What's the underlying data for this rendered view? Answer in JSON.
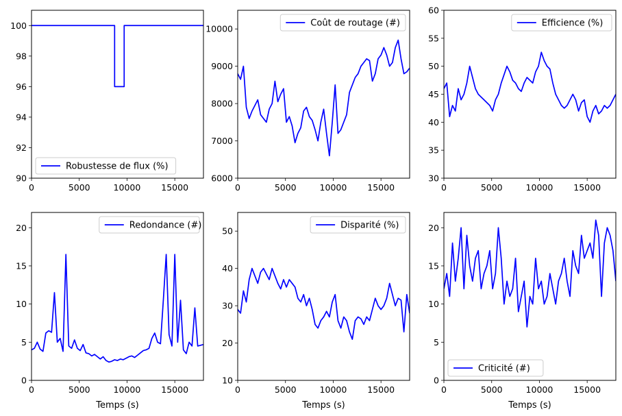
{
  "figure": {
    "line_color": "#0000ff"
  },
  "chart_data": [
    {
      "type": "line",
      "xlim": [
        0,
        18000
      ],
      "ylim": [
        90,
        101
      ],
      "xticks": [
        0,
        5000,
        10000,
        15000
      ],
      "yticks": [
        90,
        92,
        94,
        96,
        98,
        100
      ],
      "xlabel": "",
      "grid": false,
      "legend_loc": "bottom-left",
      "series": [
        {
          "name": "Robustesse de flux (%)",
          "color": "#0000ff",
          "x": [
            0,
            8700,
            8700,
            9700,
            9700,
            18000
          ],
          "y": [
            100,
            100,
            96,
            96,
            100,
            100
          ]
        }
      ]
    },
    {
      "type": "line",
      "xlim": [
        0,
        18000
      ],
      "ylim": [
        6000,
        10500
      ],
      "xticks": [
        0,
        5000,
        10000,
        15000
      ],
      "yticks": [
        6000,
        7000,
        8000,
        9000,
        10000
      ],
      "xlabel": "",
      "grid": false,
      "legend_loc": "top-right",
      "series": [
        {
          "name": "Coût de routage (#)",
          "color": "#0000ff",
          "x": [
            0,
            300,
            600,
            900,
            1200,
            1500,
            1800,
            2100,
            2400,
            2700,
            3000,
            3300,
            3600,
            3900,
            4200,
            4500,
            4800,
            5100,
            5400,
            5700,
            6000,
            6300,
            6600,
            6900,
            7200,
            7500,
            7800,
            8100,
            8400,
            8700,
            9000,
            9300,
            9600,
            9900,
            10200,
            10500,
            10800,
            11100,
            11400,
            11700,
            12000,
            12300,
            12600,
            12900,
            13200,
            13500,
            13800,
            14100,
            14400,
            14700,
            15000,
            15300,
            15600,
            15900,
            16200,
            16500,
            16800,
            17100,
            17400,
            17700,
            18000
          ],
          "y": [
            8800,
            8650,
            9000,
            7900,
            7600,
            7800,
            7950,
            8100,
            7700,
            7600,
            7500,
            7850,
            8000,
            8600,
            8050,
            8250,
            8400,
            7500,
            7650,
            7400,
            6950,
            7200,
            7350,
            7800,
            7900,
            7650,
            7550,
            7300,
            7000,
            7500,
            7850,
            7200,
            6600,
            7500,
            8500,
            7200,
            7300,
            7500,
            7700,
            8300,
            8500,
            8700,
            8800,
            9000,
            9100,
            9200,
            9150,
            8600,
            8800,
            9200,
            9300,
            9500,
            9300,
            9000,
            9100,
            9500,
            9700,
            9200,
            8800,
            8850,
            8950
          ]
        }
      ]
    },
    {
      "type": "line",
      "xlim": [
        0,
        18000
      ],
      "ylim": [
        30,
        60
      ],
      "xticks": [
        0,
        5000,
        10000,
        15000
      ],
      "yticks": [
        30,
        35,
        40,
        45,
        50,
        55,
        60
      ],
      "xlabel": "",
      "grid": false,
      "legend_loc": "top-right",
      "series": [
        {
          "name": "Efficience (%)",
          "color": "#0000ff",
          "x": [
            0,
            300,
            600,
            900,
            1200,
            1500,
            1800,
            2100,
            2400,
            2700,
            3000,
            3300,
            3600,
            3900,
            4200,
            4500,
            4800,
            5100,
            5400,
            5700,
            6000,
            6300,
            6600,
            6900,
            7200,
            7500,
            7800,
            8100,
            8400,
            8700,
            9000,
            9300,
            9600,
            9900,
            10200,
            10500,
            10800,
            11100,
            11400,
            11700,
            12000,
            12300,
            12600,
            12900,
            13200,
            13500,
            13800,
            14100,
            14400,
            14700,
            15000,
            15300,
            15600,
            15900,
            16200,
            16500,
            16800,
            17100,
            17400,
            17700,
            18000
          ],
          "y": [
            46,
            47,
            41,
            43,
            42,
            46,
            44,
            45,
            47,
            50,
            48,
            46,
            45,
            44.5,
            44,
            43.5,
            43,
            42,
            44,
            45,
            47,
            48.5,
            50,
            49,
            47.5,
            47,
            46,
            45.5,
            47,
            48,
            47.5,
            47,
            49,
            50,
            52.5,
            51,
            50,
            49.5,
            47,
            45,
            44,
            43,
            42.5,
            43,
            44,
            45,
            44,
            42,
            43.5,
            44,
            41,
            40,
            42,
            43,
            41.5,
            42,
            43,
            42.5,
            43,
            44,
            45
          ]
        }
      ]
    },
    {
      "type": "line",
      "xlim": [
        0,
        18000
      ],
      "ylim": [
        0,
        22
      ],
      "xticks": [
        0,
        5000,
        10000,
        15000
      ],
      "yticks": [
        0,
        5,
        10,
        15,
        20
      ],
      "xlabel": "Temps (s)",
      "grid": false,
      "legend_loc": "top-right",
      "series": [
        {
          "name": "Redondance (#)",
          "color": "#0000ff",
          "x": [
            0,
            300,
            600,
            900,
            1200,
            1500,
            1800,
            2100,
            2400,
            2700,
            3000,
            3300,
            3600,
            3900,
            4200,
            4500,
            4800,
            5100,
            5400,
            5700,
            6000,
            6300,
            6600,
            6900,
            7200,
            7500,
            7800,
            8100,
            8400,
            8700,
            9000,
            9300,
            9600,
            9900,
            10200,
            10500,
            10800,
            11100,
            11400,
            11700,
            12000,
            12300,
            12600,
            12900,
            13200,
            13500,
            13800,
            14100,
            14400,
            14700,
            15000,
            15300,
            15600,
            15900,
            16200,
            16500,
            16800,
            17100,
            17400,
            17700,
            18000
          ],
          "y": [
            4,
            4.2,
            5,
            4.1,
            3.8,
            6.2,
            6.5,
            6.3,
            11.5,
            5,
            5.5,
            3.8,
            16.5,
            4.5,
            4.2,
            5.3,
            4.2,
            3.9,
            4.7,
            3.6,
            3.5,
            3.2,
            3.4,
            3.1,
            2.8,
            3.1,
            2.6,
            2.4,
            2.5,
            2.7,
            2.6,
            2.8,
            2.7,
            2.9,
            3.1,
            3.2,
            3.0,
            3.3,
            3.6,
            3.9,
            4.0,
            4.2,
            5.5,
            6.2,
            5.0,
            4.8,
            10.5,
            16.5,
            6,
            4.5,
            16.5,
            5,
            10.5,
            4,
            3.5,
            5,
            4.5,
            9.5,
            4.5,
            4.6,
            4.7
          ]
        }
      ]
    },
    {
      "type": "line",
      "xlim": [
        0,
        18000
      ],
      "ylim": [
        10,
        55
      ],
      "xticks": [
        0,
        5000,
        10000,
        15000
      ],
      "yticks": [
        10,
        20,
        30,
        40,
        50
      ],
      "xlabel": "Temps (s)",
      "grid": false,
      "legend_loc": "top-right",
      "series": [
        {
          "name": "Disparité (%)",
          "color": "#0000ff",
          "x": [
            0,
            300,
            600,
            900,
            1200,
            1500,
            1800,
            2100,
            2400,
            2700,
            3000,
            3300,
            3600,
            3900,
            4200,
            4500,
            4800,
            5100,
            5400,
            5700,
            6000,
            6300,
            6600,
            6900,
            7200,
            7500,
            7800,
            8100,
            8400,
            8700,
            9000,
            9300,
            9600,
            9900,
            10200,
            10500,
            10800,
            11100,
            11400,
            11700,
            12000,
            12300,
            12600,
            12900,
            13200,
            13500,
            13800,
            14100,
            14400,
            14700,
            15000,
            15300,
            15600,
            15900,
            16200,
            16500,
            16800,
            17100,
            17400,
            17700,
            18000
          ],
          "y": [
            29,
            28,
            34,
            31,
            37,
            40,
            38,
            36,
            39,
            40,
            38.5,
            37,
            40,
            38,
            36,
            34.5,
            37,
            35,
            37,
            36,
            35,
            32,
            31,
            33,
            30,
            32,
            29,
            25,
            24,
            26,
            27,
            28.5,
            27,
            31,
            33,
            26,
            24,
            27,
            26,
            23,
            21,
            26,
            27,
            26.5,
            25,
            27,
            26,
            29,
            32,
            30,
            29,
            30,
            32,
            36,
            33,
            30,
            32,
            31.5,
            23,
            33,
            28
          ]
        }
      ]
    },
    {
      "type": "line",
      "xlim": [
        0,
        18000
      ],
      "ylim": [
        0,
        22
      ],
      "xticks": [
        0,
        5000,
        10000,
        15000
      ],
      "yticks": [
        0,
        5,
        10,
        15,
        20
      ],
      "xlabel": "Temps (s)",
      "grid": false,
      "legend_loc": "bottom-left",
      "series": [
        {
          "name": "Criticité (#)",
          "color": "#0000ff",
          "x": [
            0,
            300,
            600,
            900,
            1200,
            1500,
            1800,
            2100,
            2400,
            2700,
            3000,
            3300,
            3600,
            3900,
            4200,
            4500,
            4800,
            5100,
            5400,
            5700,
            6000,
            6300,
            6600,
            6900,
            7200,
            7500,
            7800,
            8100,
            8400,
            8700,
            9000,
            9300,
            9600,
            9900,
            10200,
            10500,
            10800,
            11100,
            11400,
            11700,
            12000,
            12300,
            12600,
            12900,
            13200,
            13500,
            13800,
            14100,
            14400,
            14700,
            15000,
            15300,
            15600,
            15900,
            16200,
            16500,
            16800,
            17100,
            17400,
            17700,
            18000
          ],
          "y": [
            12,
            14,
            11,
            18,
            13,
            16,
            20,
            12,
            19,
            15,
            13,
            16,
            17,
            12,
            14,
            15,
            17,
            12,
            14,
            20,
            16,
            10,
            13,
            11,
            12,
            16,
            9,
            11,
            13,
            7,
            11,
            10,
            16,
            12,
            13,
            10,
            11,
            14,
            12,
            10,
            13,
            14,
            16,
            13,
            11,
            17,
            15,
            14,
            19,
            16,
            17,
            18,
            16,
            21,
            19,
            11,
            18,
            20,
            19,
            17,
            13
          ]
        }
      ]
    }
  ]
}
